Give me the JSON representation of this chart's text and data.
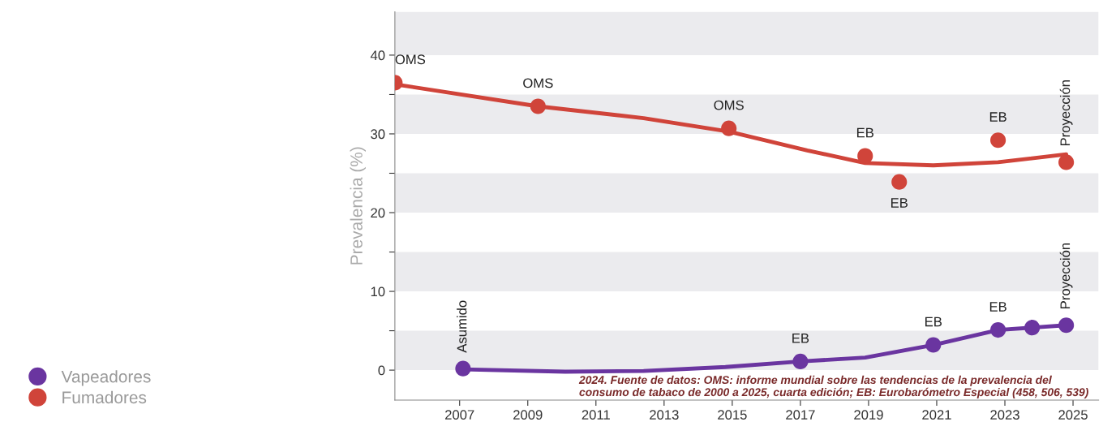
{
  "chart_data": {
    "type": "scatter",
    "ylabel": "Prevalencia (%)",
    "xlim": [
      2005.1,
      2025.75
    ],
    "ylim": [
      -3.8,
      45.5
    ],
    "xticks": [
      2007,
      2009,
      2011,
      2013,
      2015,
      2017,
      2019,
      2021,
      2023,
      2025
    ],
    "yticks": [
      0,
      {
        "value": 5,
        "label": null
      },
      10,
      {
        "value": 15,
        "label": null
      },
      20,
      {
        "value": 25,
        "label": null
      },
      30,
      {
        "value": 35,
        "label": null
      },
      40
    ],
    "grid": false,
    "legend": "bottom left",
    "marker": "circle",
    "bands": [
      {
        "axis": "y",
        "from": 0,
        "to": 5,
        "color": "#ebebee"
      },
      {
        "axis": "y",
        "from": 10,
        "to": 15,
        "color": "#ebebee"
      },
      {
        "axis": "y",
        "from": 20,
        "to": 25,
        "color": "#ebebee"
      },
      {
        "axis": "y",
        "from": 30,
        "to": 35,
        "color": "#ebebee"
      },
      {
        "axis": "y",
        "from": 40,
        "to": 45.5,
        "color": "#ebebee"
      }
    ],
    "series": [
      {
        "type": "line",
        "marker": "none",
        "color": "#d0443a",
        "x": [
          2005.1,
          2009.3,
          2012.4,
          2014.9,
          2017.2,
          2018.9,
          2020.9,
          2022.8,
          2024.8
        ],
        "values": [
          36.3,
          33.5,
          32.0,
          30.3,
          27.9,
          26.3,
          26.0,
          26.4,
          27.4
        ]
      },
      {
        "type": "line",
        "marker": "none",
        "color": "#6a35a0",
        "x": [
          2007.1,
          2010.1,
          2012.4,
          2014.8,
          2017.0,
          2018.9,
          2020.9,
          2022.8,
          2024.8
        ],
        "values": [
          0.1,
          -0.2,
          -0.1,
          0.4,
          1.1,
          1.6,
          3.2,
          5.1,
          5.7
        ]
      },
      {
        "name": "Vapeadores",
        "color": "#6a35a0",
        "x": [
          2007.1,
          2017.0,
          2020.9,
          2022.8,
          2023.8,
          2024.8
        ],
        "values": [
          0.2,
          1.1,
          3.2,
          5.1,
          5.4,
          5.7
        ]
      },
      {
        "name": "Fumadores",
        "color": "#d0443a",
        "x": [
          2005.1,
          2009.3,
          2014.9,
          2018.9,
          2019.9,
          2022.8,
          2024.8
        ],
        "values": [
          36.5,
          33.5,
          30.7,
          27.2,
          23.9,
          29.2,
          26.4
        ]
      }
    ],
    "annotations": [
      {
        "text": "OMS",
        "x": 2005.1,
        "y": 36.5
      },
      {
        "text": "OMS",
        "x": 2009.3,
        "y": 33.5
      },
      {
        "text": "OMS",
        "x": 2014.9,
        "y": 30.7
      },
      {
        "text": "EB",
        "x": 2018.9,
        "y": 27.2
      },
      {
        "text": "EB",
        "x": 2019.9,
        "y": 23.9
      },
      {
        "text": "EB",
        "x": 2022.8,
        "y": 29.2
      },
      {
        "text": "Proyección",
        "x": 2024.8,
        "y": 26.4
      },
      {
        "text": "Asumido",
        "x": 2007.1,
        "y": 0.2
      },
      {
        "text": "EB",
        "x": 2017.0,
        "y": 1.1
      },
      {
        "text": "EB",
        "x": 2020.9,
        "y": 3.2
      },
      {
        "text": "EB",
        "x": 2022.8,
        "y": 5.1
      },
      {
        "text": "Proyección",
        "x": 2024.8,
        "y": 5.7
      },
      "2024. Fuente de datos: OMS: informe mundial sobre las tendencias de la prevalencia del consumo de tabaco de 2000 a 2025, cuarta edición; EB: Eurobarómetro Especial (458, 506, 539)"
    ]
  }
}
